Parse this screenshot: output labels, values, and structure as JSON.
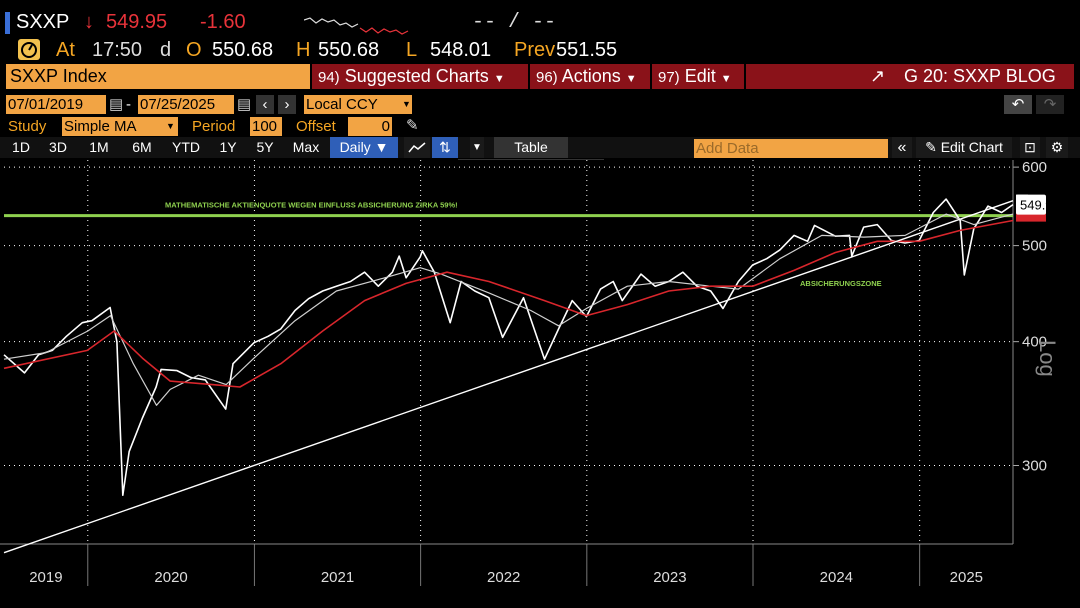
{
  "quote": {
    "ticker": "SXXP",
    "arrow": "↓",
    "last": "549.95",
    "change": "-1.60",
    "range_placeholder": "-- / --",
    "at_label": "At",
    "time": "17:50",
    "d_label": "d",
    "open_label": "O",
    "open": "550.68",
    "high_label": "H",
    "high": "550.68",
    "low_label": "L",
    "low": "548.01",
    "prev_label": "Prev",
    "prev": "551.55"
  },
  "menu": {
    "security": "SXXP Index",
    "suggested_num": "94)",
    "suggested": "Suggested Charts",
    "actions_num": "96)",
    "actions": "Actions",
    "edit_num": "97)",
    "edit": "Edit",
    "title": "G 20: SXXP BLOG"
  },
  "controls": {
    "start_date": "07/01/2019",
    "dash": "-",
    "end_date": "07/25/2025",
    "currency": "Local CCY",
    "study_label": "Study",
    "study": "Simple MA",
    "period_label": "Period",
    "period": "100",
    "offset_label": "Offset",
    "offset": "0"
  },
  "toolbar": {
    "ranges": [
      "1D",
      "3D",
      "1M",
      "6M",
      "YTD",
      "1Y",
      "5Y",
      "Max"
    ],
    "frequency": "Daily ▼",
    "table": "Table",
    "add_data_placeholder": "Add Data",
    "edit_chart": "Edit Chart"
  },
  "colors": {
    "price": "#ffffff",
    "ma_fast": "#cfcfcf",
    "ma_slow": "#d8262c",
    "hedge_line": "#8fd14f",
    "trendline": "#ffffff",
    "menu_orange": "#f2a444",
    "menu_red": "#8a1219"
  },
  "chart_data": {
    "type": "line",
    "scale": "log",
    "ylim": [
      250,
      610
    ],
    "y_ticks": [
      300,
      400,
      500,
      600
    ],
    "y_axis_label": "Log",
    "x_tick_labels": [
      "2019",
      "2020",
      "2021",
      "2022",
      "2023",
      "2024",
      "2025"
    ],
    "last_price_label": "549.95",
    "hedge_level": 536,
    "hedge_label": "MATHEMATISCHE AKTIENQUOTE WEGEN EINFLUSS ABSICHERUNG ZIRKA 59%!",
    "zone_label": "ABSICHERUNGSZONE",
    "series": [
      {
        "role": "price",
        "points": [
          [
            "2019-07-01",
            388
          ],
          [
            "2019-08-15",
            372
          ],
          [
            "2019-09-15",
            388
          ],
          [
            "2019-10-15",
            392
          ],
          [
            "2019-11-15",
            405
          ],
          [
            "2019-12-20",
            418
          ],
          [
            "2020-01-10",
            420
          ],
          [
            "2020-02-19",
            433
          ],
          [
            "2020-03-05",
            400
          ],
          [
            "2020-03-18",
            280
          ],
          [
            "2020-04-01",
            310
          ],
          [
            "2020-04-30",
            335
          ],
          [
            "2020-05-30",
            360
          ],
          [
            "2020-06-10",
            375
          ],
          [
            "2020-07-15",
            374
          ],
          [
            "2020-08-15",
            368
          ],
          [
            "2020-09-15",
            366
          ],
          [
            "2020-10-30",
            342
          ],
          [
            "2020-11-15",
            380
          ],
          [
            "2020-12-31",
            399
          ],
          [
            "2021-01-31",
            405
          ],
          [
            "2021-02-28",
            412
          ],
          [
            "2021-03-31",
            430
          ],
          [
            "2021-04-30",
            442
          ],
          [
            "2021-05-31",
            450
          ],
          [
            "2021-06-30",
            455
          ],
          [
            "2021-07-31",
            460
          ],
          [
            "2021-08-31",
            470
          ],
          [
            "2021-09-30",
            455
          ],
          [
            "2021-10-31",
            470
          ],
          [
            "2021-11-15",
            488
          ],
          [
            "2021-11-30",
            464
          ],
          [
            "2021-12-31",
            487
          ],
          [
            "2022-01-05",
            494
          ],
          [
            "2022-01-31",
            470
          ],
          [
            "2022-03-07",
            418
          ],
          [
            "2022-03-31",
            460
          ],
          [
            "2022-04-30",
            450
          ],
          [
            "2022-05-31",
            443
          ],
          [
            "2022-06-30",
            404
          ],
          [
            "2022-08-15",
            443
          ],
          [
            "2022-09-30",
            384
          ],
          [
            "2022-10-31",
            412
          ],
          [
            "2022-11-30",
            440
          ],
          [
            "2022-12-31",
            424
          ],
          [
            "2023-01-31",
            452
          ],
          [
            "2023-02-28",
            460
          ],
          [
            "2023-03-20",
            440
          ],
          [
            "2023-04-30",
            468
          ],
          [
            "2023-05-31",
            455
          ],
          [
            "2023-06-30",
            460
          ],
          [
            "2023-07-31",
            470
          ],
          [
            "2023-08-31",
            455
          ],
          [
            "2023-09-30",
            450
          ],
          [
            "2023-10-27",
            432
          ],
          [
            "2023-11-30",
            460
          ],
          [
            "2023-12-31",
            478
          ],
          [
            "2024-01-31",
            485
          ],
          [
            "2024-02-29",
            495
          ],
          [
            "2024-03-31",
            512
          ],
          [
            "2024-04-30",
            505
          ],
          [
            "2024-05-15",
            524
          ],
          [
            "2024-06-30",
            511
          ],
          [
            "2024-07-31",
            512
          ],
          [
            "2024-08-05",
            488
          ],
          [
            "2024-08-31",
            522
          ],
          [
            "2024-09-30",
            525
          ],
          [
            "2024-10-31",
            506
          ],
          [
            "2024-11-30",
            503
          ],
          [
            "2024-12-31",
            506
          ],
          [
            "2025-01-31",
            540
          ],
          [
            "2025-02-28",
            557
          ],
          [
            "2025-03-31",
            530
          ],
          [
            "2025-04-09",
            467
          ],
          [
            "2025-04-30",
            520
          ],
          [
            "2025-05-31",
            548
          ],
          [
            "2025-06-30",
            540
          ],
          [
            "2025-07-25",
            549.95
          ]
        ]
      },
      {
        "role": "fast_ma",
        "points": [
          [
            "2019-07-01",
            384
          ],
          [
            "2019-10-01",
            390
          ],
          [
            "2020-01-01",
            410
          ],
          [
            "2020-02-20",
            425
          ],
          [
            "2020-04-10",
            380
          ],
          [
            "2020-05-31",
            345
          ],
          [
            "2020-06-30",
            358
          ],
          [
            "2020-08-31",
            370
          ],
          [
            "2020-10-31",
            362
          ],
          [
            "2020-12-31",
            385
          ],
          [
            "2021-03-31",
            420
          ],
          [
            "2021-06-30",
            450
          ],
          [
            "2021-09-30",
            462
          ],
          [
            "2021-12-31",
            475
          ],
          [
            "2022-02-15",
            468
          ],
          [
            "2022-05-31",
            448
          ],
          [
            "2022-08-31",
            430
          ],
          [
            "2022-10-31",
            415
          ],
          [
            "2022-12-31",
            432
          ],
          [
            "2023-03-31",
            455
          ],
          [
            "2023-06-30",
            460
          ],
          [
            "2023-09-30",
            455
          ],
          [
            "2023-11-30",
            452
          ],
          [
            "2024-02-29",
            485
          ],
          [
            "2024-05-31",
            512
          ],
          [
            "2024-08-31",
            510
          ],
          [
            "2024-11-30",
            512
          ],
          [
            "2025-02-28",
            538
          ],
          [
            "2025-04-30",
            525
          ],
          [
            "2025-07-25",
            538
          ]
        ]
      },
      {
        "role": "ma_100",
        "points": [
          [
            "2019-07-01",
            376
          ],
          [
            "2019-12-31",
            392
          ],
          [
            "2020-02-28",
            410
          ],
          [
            "2020-04-30",
            385
          ],
          [
            "2020-06-30",
            365
          ],
          [
            "2020-09-30",
            362
          ],
          [
            "2020-11-30",
            360
          ],
          [
            "2021-02-28",
            380
          ],
          [
            "2021-05-31",
            410
          ],
          [
            "2021-08-31",
            440
          ],
          [
            "2021-11-30",
            458
          ],
          [
            "2022-02-28",
            470
          ],
          [
            "2022-05-31",
            460
          ],
          [
            "2022-09-30",
            440
          ],
          [
            "2022-12-31",
            425
          ],
          [
            "2023-03-31",
            436
          ],
          [
            "2023-06-30",
            450
          ],
          [
            "2023-09-30",
            455
          ],
          [
            "2023-12-31",
            455
          ],
          [
            "2024-03-31",
            472
          ],
          [
            "2024-06-30",
            492
          ],
          [
            "2024-09-30",
            505
          ],
          [
            "2024-12-31",
            505
          ],
          [
            "2025-03-31",
            518
          ],
          [
            "2025-07-25",
            530
          ]
        ]
      },
      {
        "role": "support_trendline",
        "points": [
          [
            "2019-07-01",
            245
          ],
          [
            "2025-07-25",
            555
          ]
        ]
      }
    ]
  }
}
